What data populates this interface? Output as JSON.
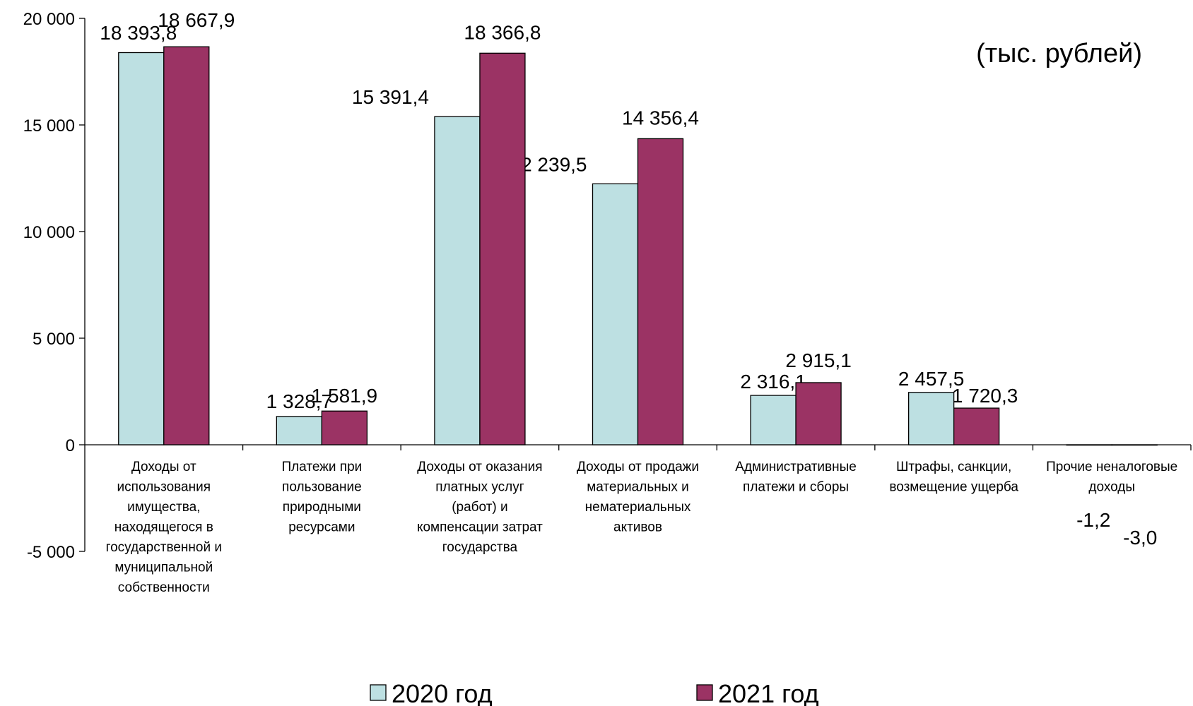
{
  "chart_data": {
    "type": "bar",
    "unit_label": "(тыс. рублей)",
    "categories": [
      [
        "Доходы от",
        "использования",
        "имущества,",
        "находящегося в",
        "государственной и",
        "муниципальной",
        "собственности"
      ],
      [
        "Платежи при",
        "пользование",
        "природными",
        "ресурсами"
      ],
      [
        "Доходы от оказания",
        "платных услуг",
        "(работ) и",
        "компенсации затрат",
        "государства"
      ],
      [
        "Доходы от продажи",
        "материальных и",
        "нематериальных",
        "активов"
      ],
      [
        "Административные",
        "платежи и сборы"
      ],
      [
        "Штрафы, санкции,",
        "возмещение ущерба"
      ],
      [
        "Прочие неналоговые",
        "доходы"
      ]
    ],
    "series": [
      {
        "name": "2020 год",
        "color": "#bde0e2",
        "values": [
          18393.8,
          1328.7,
          15391.4,
          12239.5,
          2316.1,
          2457.5,
          -1.2
        ],
        "labels": [
          "18 393,8",
          "1 328,7",
          "15 391,4",
          "12 239,5",
          "2 316,1",
          "2 457,5",
          "-1,2"
        ]
      },
      {
        "name": "2021 год",
        "color": "#9b3364",
        "values": [
          18667.9,
          1581.9,
          18366.8,
          14356.4,
          2915.1,
          1720.3,
          -3.0
        ],
        "labels": [
          "18 667,9",
          "1 581,9",
          "18 366,8",
          "14 356,4",
          "2 915,1",
          "1 720,3",
          "-3,0"
        ]
      }
    ],
    "ylim": [
      -5000,
      20000
    ],
    "yticks": [
      20000,
      15000,
      10000,
      5000,
      0,
      -5000
    ],
    "ytick_labels": [
      "20 000",
      "15 000",
      "10 000",
      "5 000",
      "0",
      "-5 000"
    ],
    "legend_position": "bottom-center",
    "grid": false
  }
}
